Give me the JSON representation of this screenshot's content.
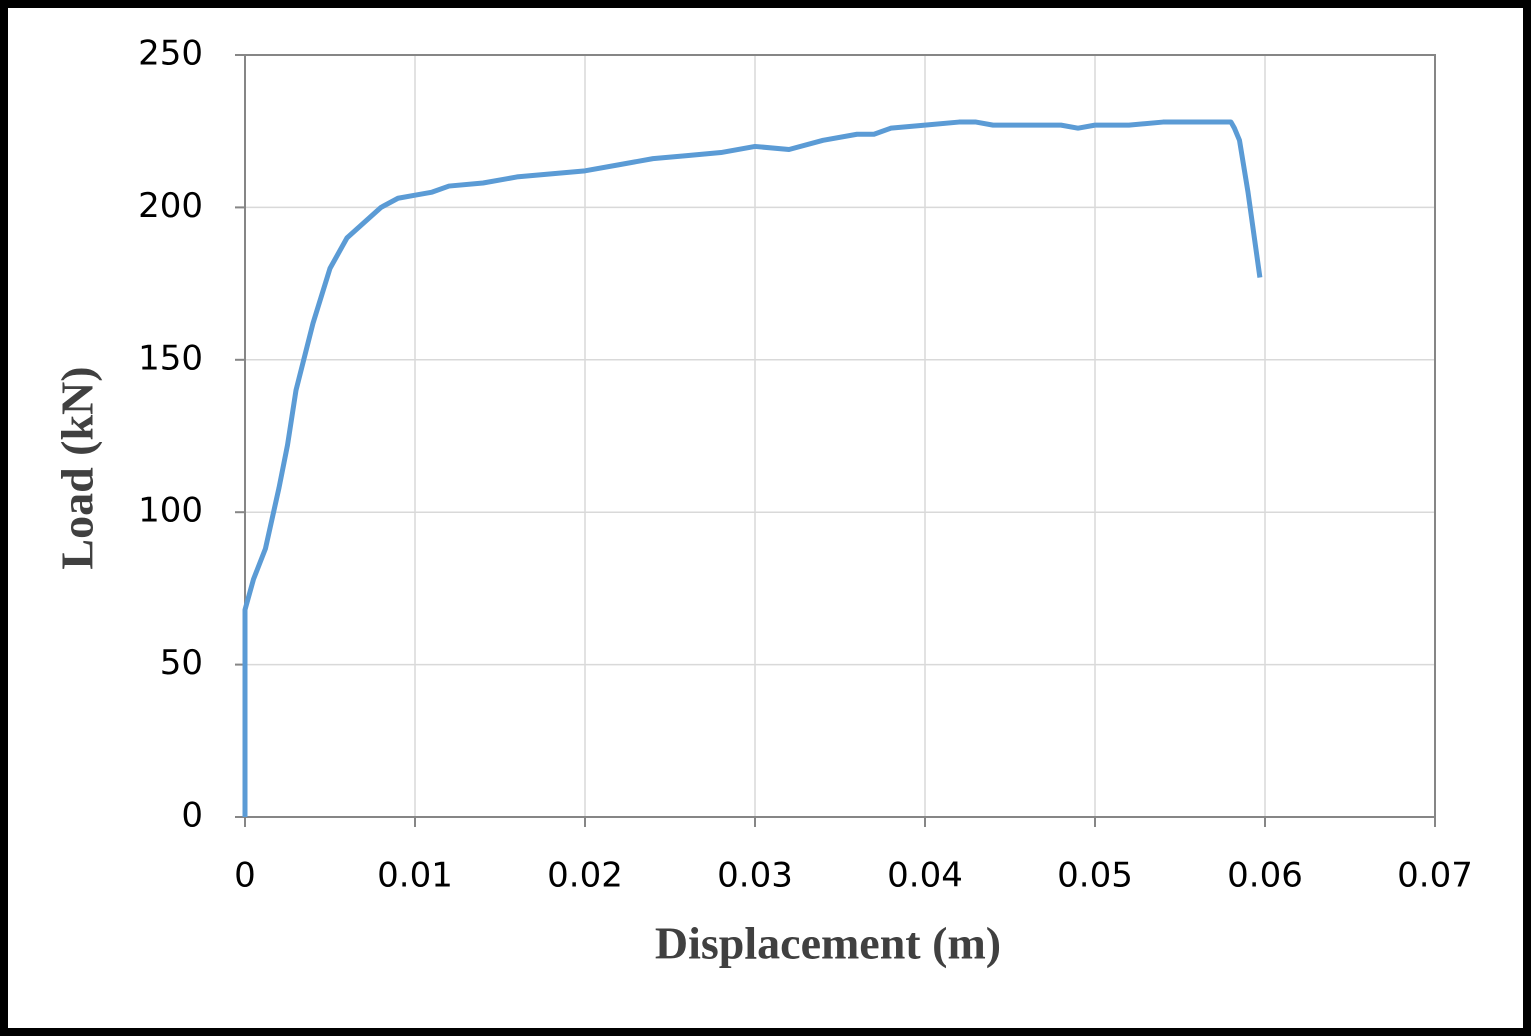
{
  "chart_data": {
    "type": "line",
    "x_label": "Displacement (m)",
    "y_label": "Load (kN)",
    "x": [
      0,
      0,
      0.0005,
      0.0012,
      0.002,
      0.0025,
      0.003,
      0.004,
      0.005,
      0.006,
      0.007,
      0.008,
      0.009,
      0.01,
      0.011,
      0.012,
      0.014,
      0.016,
      0.018,
      0.02,
      0.022,
      0.024,
      0.026,
      0.028,
      0.03,
      0.032,
      0.034,
      0.036,
      0.037,
      0.038,
      0.04,
      0.042,
      0.043,
      0.044,
      0.046,
      0.048,
      0.049,
      0.05,
      0.052,
      0.054,
      0.056,
      0.058,
      0.0582,
      0.0585,
      0.059,
      0.0597
    ],
    "values": [
      0,
      68,
      78,
      88,
      108,
      122,
      140,
      162,
      180,
      190,
      195,
      200,
      203,
      204,
      205,
      207,
      208,
      210,
      211,
      212,
      214,
      216,
      217,
      218,
      220,
      219,
      222,
      224,
      224,
      226,
      227,
      228,
      228,
      227,
      227,
      227,
      226,
      227,
      227,
      228,
      228,
      228,
      226,
      222,
      205,
      177
    ],
    "color": "#5b9bd5",
    "xlim": [
      0,
      0.07
    ],
    "xticks": [
      0,
      0.01,
      0.02,
      0.03,
      0.04,
      0.05,
      0.06,
      0.07
    ],
    "ylim": [
      0,
      250
    ],
    "yticks": [
      0,
      50,
      100,
      150,
      200,
      250
    ],
    "grid": true
  }
}
